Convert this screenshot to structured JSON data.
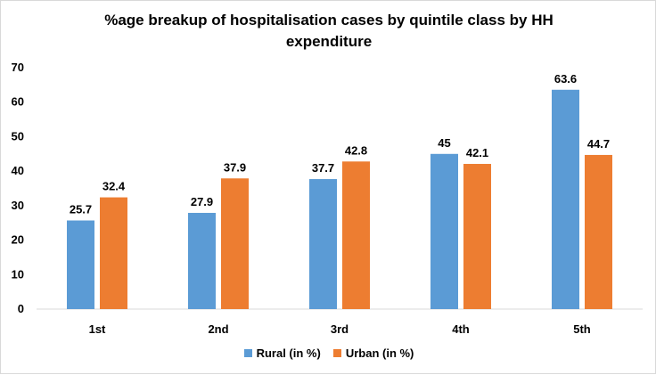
{
  "chart_data": {
    "type": "bar",
    "title_lines": [
      "%age breakup of hospitalisation cases by quintile class by HH",
      "expenditure"
    ],
    "categories": [
      "1st",
      "2nd",
      "3rd",
      "4th",
      "5th"
    ],
    "series": [
      {
        "name": "Rural (in %)",
        "color": "#5b9bd5",
        "values": [
          25.7,
          27.9,
          37.7,
          45,
          63.6
        ]
      },
      {
        "name": "Urban (in %)",
        "color": "#ed7d31",
        "values": [
          32.4,
          37.9,
          42.8,
          42.1,
          44.7
        ]
      }
    ],
    "ylim": [
      0,
      70
    ],
    "yticks": [
      0,
      10,
      20,
      30,
      40,
      50,
      60,
      70
    ],
    "grid": false,
    "legend_position": "bottom"
  }
}
